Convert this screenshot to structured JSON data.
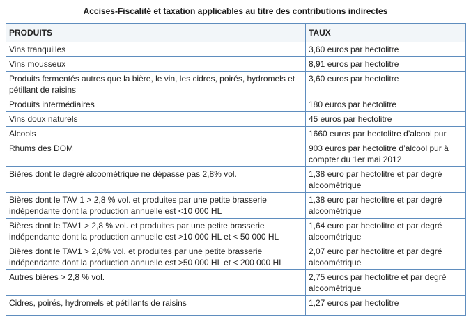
{
  "page": {
    "title": "Accises-Fiscalité et taxation applicables au titre des contributions indirectes"
  },
  "colors": {
    "border": "#5f8dbe",
    "header_background": "#f2f6f9",
    "text": "#222222"
  },
  "table": {
    "columns": [
      "PRODUITS",
      "TAUX"
    ],
    "rows": [
      {
        "produit": "Vins tranquilles",
        "taux": "3,60 euros par hectolitre"
      },
      {
        "produit": "Vins mousseux",
        "taux": "8,91 euros par hectolitre"
      },
      {
        "produit": "Produits fermentés autres que la bière, le vin, les cidres, poirés, hydromels et pétillant de raisins",
        "taux": "3,60 euros par hectolitre"
      },
      {
        "produit": "Produits intermédiaires",
        "taux": "180 euros par hectolitre"
      },
      {
        "produit": "Vins doux naturels",
        "taux": "45 euros par hectolitre"
      },
      {
        "produit": "Alcools",
        "taux": "1660 euros par hectolitre d’alcool pur"
      },
      {
        "produit": "Rhums des DOM",
        "taux": "903 euros par hectolitre d’alcool pur à compter du 1er mai 2012"
      },
      {
        "produit": "Bières dont le degré alcoométrique ne dépasse pas 2,8% vol.",
        "taux": "1,38 euro par hectolitre et par degré alcoométrique"
      },
      {
        "produit": "Bières dont le TAV 1 > 2,8 % vol. et produites par une petite brasserie indépendante dont la production annuelle est <10 000 HL",
        "taux": "1,38 euro par hectolitre et par degré alcoométrique"
      },
      {
        "produit": "Bières dont le TAV1 > 2,8 % vol. et produites par une petite brasserie indépendante dont la production annuelle est >10 000 HL et < 50 000 HL",
        "taux": "1,64 euro par hectolitre et par degré alcoométrique"
      },
      {
        "produit": "Bières dont le TAV1 > 2,8% vol. et produites par une petite brasserie indépendante dont la production annuelle est >50 000 HL et < 200 000 HL",
        "taux": "2,07 euro par hectolitre et par degré alcoométrique"
      },
      {
        "produit": "Autres bières > 2,8 % vol.",
        "taux": "2,75 euros par hectolitre et par degré alcoométrique"
      },
      {
        "produit": "Cidres, poirés, hydromels et pétillants de raisins",
        "taux": "1,27 euros par hectolitre"
      }
    ]
  }
}
